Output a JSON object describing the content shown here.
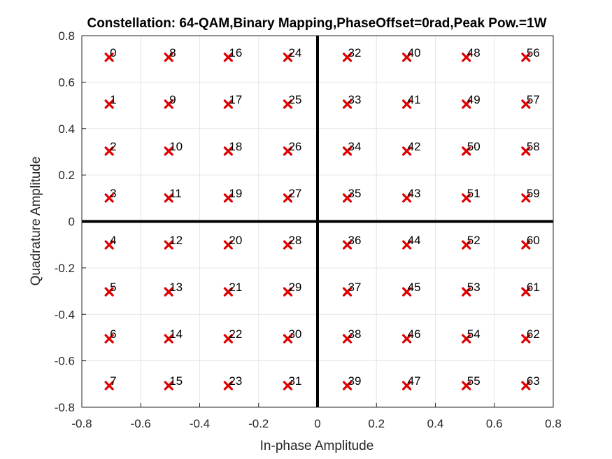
{
  "chart_data": {
    "type": "scatter",
    "title": "Constellation: 64-QAM,Binary Mapping,PhaseOffset=0rad,Peak Pow.=1W",
    "xlabel": "In-phase Amplitude",
    "ylabel": "Quadrature Amplitude",
    "xlim": [
      -0.8,
      0.8
    ],
    "ylim": [
      -0.8,
      0.8
    ],
    "xticks": [
      "-0.8",
      "-0.6",
      "-0.4",
      "-0.2",
      "0",
      "0.2",
      "0.4",
      "0.6",
      "0.8"
    ],
    "yticks": [
      "-0.8",
      "-0.6",
      "-0.4",
      "-0.2",
      "0",
      "0.2",
      "0.4",
      "0.6",
      "0.8"
    ],
    "grid": true,
    "marker": "x",
    "marker_color": "#e00000",
    "axis_line_color": "#000000",
    "i_levels": [
      -0.7071,
      -0.5051,
      -0.303,
      -0.101,
      0.101,
      0.303,
      0.5051,
      0.7071
    ],
    "q_levels": [
      0.7071,
      0.5051,
      0.303,
      0.101,
      -0.101,
      -0.303,
      -0.5051,
      -0.7071
    ],
    "symbols": [
      "0",
      "1",
      "2",
      "3",
      "4",
      "5",
      "6",
      "7",
      "8",
      "9",
      "10",
      "11",
      "12",
      "13",
      "14",
      "15",
      "16",
      "17",
      "18",
      "19",
      "20",
      "21",
      "22",
      "23",
      "24",
      "25",
      "26",
      "27",
      "28",
      "29",
      "30",
      "31",
      "32",
      "33",
      "34",
      "35",
      "36",
      "37",
      "38",
      "39",
      "40",
      "41",
      "42",
      "43",
      "44",
      "45",
      "46",
      "47",
      "48",
      "49",
      "50",
      "51",
      "52",
      "53",
      "54",
      "55",
      "56",
      "57",
      "58",
      "59",
      "60",
      "61",
      "62",
      "63"
    ]
  }
}
